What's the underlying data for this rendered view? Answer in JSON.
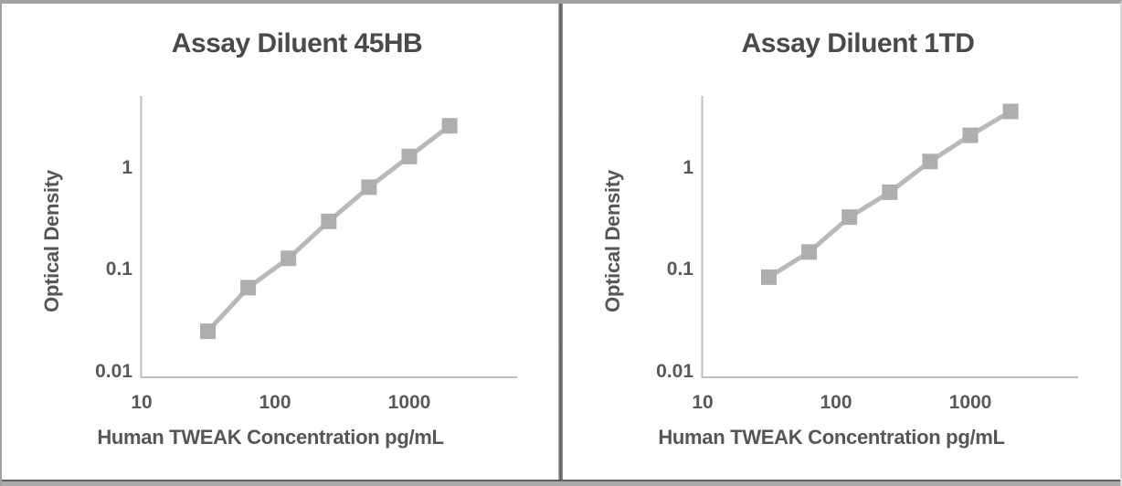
{
  "frame": {
    "border_color": "#a2a2a2",
    "divider_color": "#555555",
    "bottom_line_color": "#5f5f5f",
    "bottom_band_color": "#ababab"
  },
  "styles": {
    "title_color": "#4a4a4a",
    "label_color": "#595959",
    "axis_line_color": "#bfbfbf",
    "curve_line_color": "#b9b9b9",
    "marker_color": "#aeaeae"
  },
  "chart_data": [
    {
      "type": "line",
      "title": "Assay Diluent 45HB",
      "xlabel": "Human TWEAK Concentration pg/mL",
      "ylabel": "Optical Density",
      "x_scale": "log",
      "y_scale": "log",
      "xlim": [
        10,
        6300
      ],
      "ylim": [
        0.01,
        5
      ],
      "grid": false,
      "legend": false,
      "marker": "square",
      "x_tick_labels": [
        "10",
        "100",
        "1000"
      ],
      "y_tick_labels": [
        "1",
        "0.1",
        "0.01"
      ],
      "x": [
        31.25,
        62.5,
        125,
        250,
        500,
        1000,
        2000
      ],
      "y": [
        0.025,
        0.067,
        0.13,
        0.3,
        0.65,
        1.3,
        2.6
      ]
    },
    {
      "type": "line",
      "title": "Assay Diluent 1TD",
      "xlabel": "Human TWEAK Concentration pg/mL",
      "ylabel": "Optical Density",
      "x_scale": "log",
      "y_scale": "log",
      "xlim": [
        10,
        6300
      ],
      "ylim": [
        0.01,
        5
      ],
      "grid": false,
      "legend": false,
      "marker": "square",
      "x_tick_labels": [
        "10",
        "100",
        "1000"
      ],
      "y_tick_labels": [
        "1",
        "0.1",
        "0.01"
      ],
      "x": [
        31.25,
        62.5,
        125,
        250,
        500,
        1000,
        2000
      ],
      "y": [
        0.085,
        0.15,
        0.33,
        0.58,
        1.16,
        2.1,
        3.6
      ]
    }
  ]
}
